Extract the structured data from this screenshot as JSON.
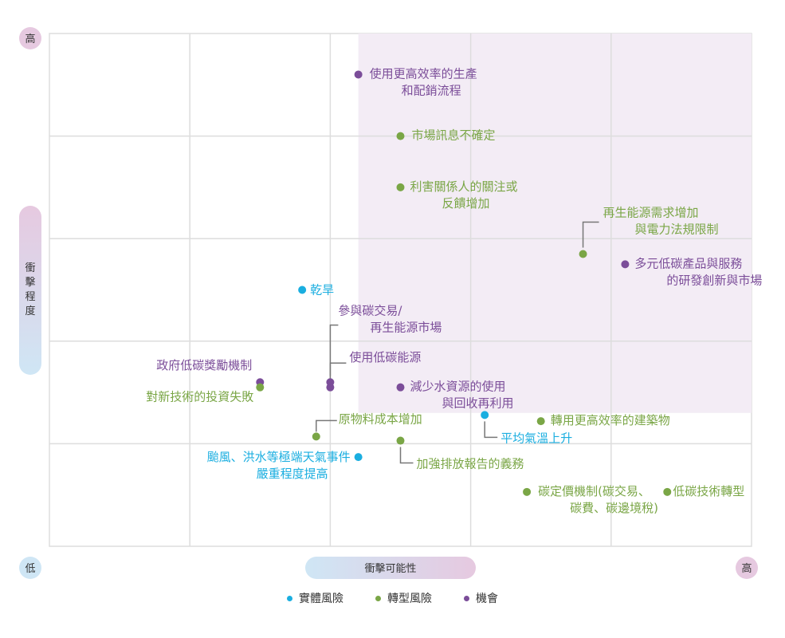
{
  "chart_data": {
    "type": "scatter",
    "xlabel": "衝擊可能性",
    "ylabel": "衝擊程度",
    "x_low_label": "低",
    "x_high_label": "高",
    "y_high_label": "高",
    "xlim": [
      0,
      5
    ],
    "ylim": [
      0,
      5
    ],
    "grid": true,
    "legend_position": "bottom",
    "colors": {
      "physical": "#1aaee0",
      "transition": "#7aa646",
      "opportunity": "#7b4d99",
      "highlight": "#f3ecf5",
      "grid": "#dddddd"
    },
    "legend": [
      {
        "key": "physical",
        "label": "實體風險"
      },
      {
        "key": "transition",
        "label": "轉型風險"
      },
      {
        "key": "opportunity",
        "label": "機會"
      }
    ],
    "points": [
      {
        "x": 2.2,
        "y": 4.6,
        "series": "opportunity",
        "label": [
          "使用更高效率的生產",
          "和配銷流程"
        ]
      },
      {
        "x": 2.5,
        "y": 4.0,
        "series": "transition",
        "label": [
          "市場訊息不確定"
        ]
      },
      {
        "x": 2.5,
        "y": 3.5,
        "series": "transition",
        "label": [
          "利害關係人的關注或",
          "反饋增加"
        ]
      },
      {
        "x": 3.8,
        "y": 2.85,
        "series": "transition",
        "label": [
          "再生能源需求增加",
          "與電力法規限制"
        ]
      },
      {
        "x": 4.1,
        "y": 2.75,
        "series": "opportunity",
        "label": [
          "多元低碳產品與服務",
          "的研發創新與市場"
        ]
      },
      {
        "x": 1.8,
        "y": 2.5,
        "series": "physical",
        "label": [
          "乾旱"
        ]
      },
      {
        "x": 2.0,
        "y": 1.55,
        "series": "opportunity",
        "label": [
          "參與碳交易/",
          "再生能源市場"
        ]
      },
      {
        "x": 2.0,
        "y": 1.6,
        "series": "opportunity",
        "label": [
          "使用低碳能源"
        ]
      },
      {
        "x": 1.5,
        "y": 1.6,
        "series": "opportunity",
        "label": [
          "政府低碳獎勵機制"
        ]
      },
      {
        "x": 1.5,
        "y": 1.55,
        "series": "transition",
        "label": [
          "對新技術的投資失敗"
        ]
      },
      {
        "x": 2.5,
        "y": 1.55,
        "series": "opportunity",
        "label": [
          "減少水資源的使用",
          "與回收再利用"
        ]
      },
      {
        "x": 3.1,
        "y": 1.28,
        "series": "physical",
        "label": [
          "平均氣溫上升"
        ]
      },
      {
        "x": 3.5,
        "y": 1.22,
        "series": "transition",
        "label": [
          "轉用更高效率的建築物"
        ]
      },
      {
        "x": 1.9,
        "y": 1.07,
        "series": "transition",
        "label": [
          "原物料成本增加"
        ]
      },
      {
        "x": 2.5,
        "y": 1.03,
        "series": "transition",
        "label": [
          "加強排放報告的義務"
        ]
      },
      {
        "x": 2.2,
        "y": 0.87,
        "series": "physical",
        "label": [
          "颱風、洪水等極端天氣事件",
          "嚴重程度提高"
        ]
      },
      {
        "x": 3.4,
        "y": 0.53,
        "series": "transition",
        "label": [
          "碳定價機制(碳交易、",
          "碳費、碳邊境稅)"
        ]
      },
      {
        "x": 4.4,
        "y": 0.53,
        "series": "transition",
        "label": [
          "低碳技術轉型"
        ]
      }
    ]
  }
}
